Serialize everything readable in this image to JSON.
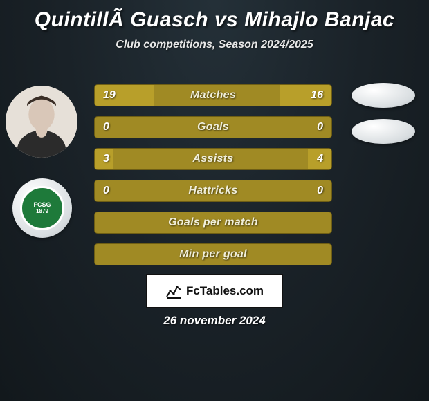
{
  "title": "QuintillÃ  Guasch vs Mihajlo Banjac",
  "subtitle": "Club competitions, Season 2024/2025",
  "footer_date": "26 november 2024",
  "fctables_label": "FcTables.com",
  "colors": {
    "bg_center": "#243038",
    "bg_outer": "#12181c",
    "bar_base": "#a08a24",
    "bar_fill": "#b89f2a",
    "bar_border": "#6e5e15",
    "badge_green": "#1e7a3a",
    "white": "#ffffff",
    "text": "#ffffff",
    "label_text": "#f0eeda"
  },
  "typography": {
    "title_fontsize": 30,
    "subtitle_fontsize": 16,
    "bar_label_fontsize": 16,
    "footer_fontsize": 17
  },
  "left_badge": {
    "text_top": "FCSG",
    "text_year": "1879"
  },
  "bars": [
    {
      "label": "Matches",
      "left": "19",
      "right": "16",
      "left_pct": 25,
      "right_pct": 22
    },
    {
      "label": "Goals",
      "left": "0",
      "right": "0",
      "left_pct": 0,
      "right_pct": 0
    },
    {
      "label": "Assists",
      "left": "3",
      "right": "4",
      "left_pct": 8,
      "right_pct": 10
    },
    {
      "label": "Hattricks",
      "left": "0",
      "right": "0",
      "left_pct": 0,
      "right_pct": 0
    },
    {
      "label": "Goals per match",
      "left": "",
      "right": "",
      "left_pct": 0,
      "right_pct": 0
    },
    {
      "label": "Min per goal",
      "left": "",
      "right": "",
      "left_pct": 0,
      "right_pct": 0
    }
  ]
}
